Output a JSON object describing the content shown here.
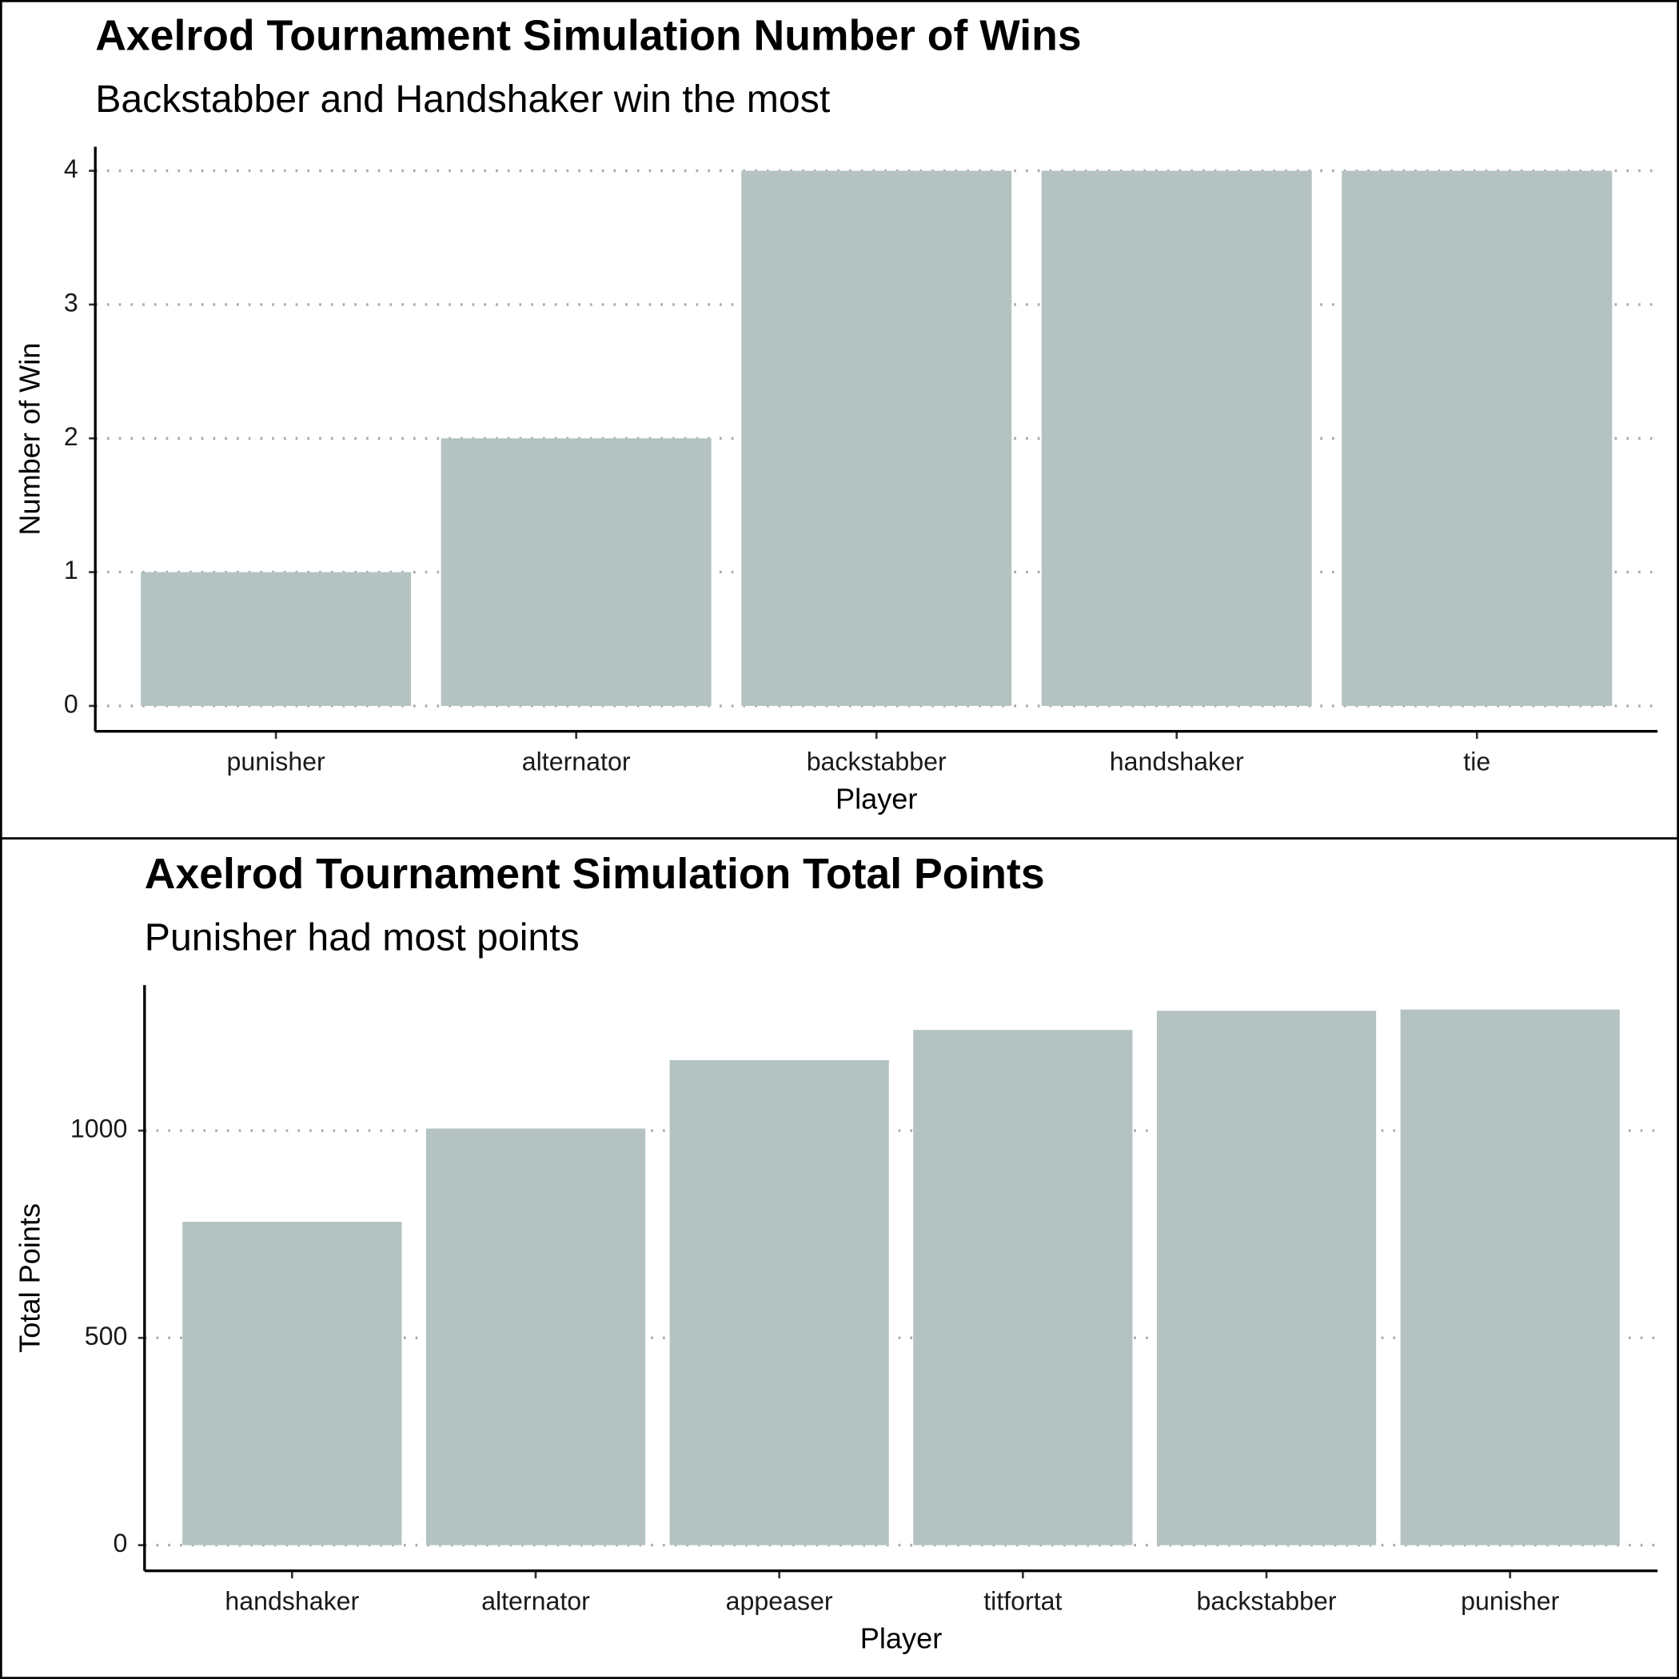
{
  "chart_data": [
    {
      "type": "bar",
      "title": "Axelrod Tournament Simulation Number of Wins",
      "subtitle": "Backstabber and Handshaker win the most",
      "x_label": "Player",
      "y_label": "Number of Win",
      "categories": [
        "punisher",
        "alternator",
        "backstabber",
        "handshaker",
        "tie"
      ],
      "values": [
        1,
        2,
        4,
        4,
        4
      ],
      "color": "#b4c2c2",
      "ylim": [
        -0.19,
        4.18
      ],
      "yticks": [
        0,
        1,
        2,
        3,
        4
      ],
      "grid": true
    },
    {
      "type": "bar",
      "title": "Axelrod Tournament Simulation Total Points",
      "subtitle": "Punisher had most points",
      "x_label": "Player",
      "y_label": "Total Points",
      "categories": [
        "handshaker",
        "alternator",
        "appeaser",
        "titfortat",
        "backstabber",
        "punisher"
      ],
      "values": [
        780,
        1005,
        1170,
        1243,
        1289,
        1292
      ],
      "color": "#b4c2c2",
      "ylim": [
        -62,
        1351
      ],
      "yticks": [
        0,
        500,
        1000
      ],
      "grid": true
    }
  ]
}
